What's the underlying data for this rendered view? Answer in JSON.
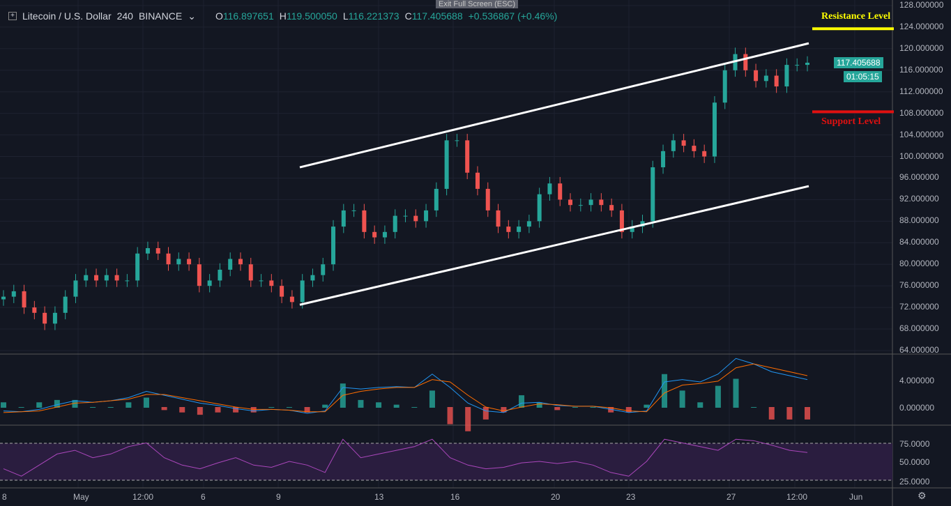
{
  "header": {
    "symbol": "Litecoin / U.S. Dollar",
    "interval": "240",
    "exchange": "BINANCE",
    "o_label": "O",
    "open": "116.897651",
    "h_label": "H",
    "high": "119.500050",
    "l_label": "L",
    "low": "116.221373",
    "c_label": "C",
    "close": "117.405688",
    "change": "+0.536867 (+0.46%)"
  },
  "exit_fullscreen": "Exit Full Screen (ESC)",
  "annotations": {
    "resistance": "Resistance Level",
    "support": "Support Level",
    "resistance_price": 123.7,
    "support_price": 108.3,
    "resistance_color": "#ffff00",
    "support_color": "#e01010"
  },
  "price_axis": [
    "128.000000",
    "124.000000",
    "120.000000",
    "116.000000",
    "112.000000",
    "108.000000",
    "104.000000",
    "100.000000",
    "96.000000",
    "92.000000",
    "88.000000",
    "84.000000",
    "80.000000",
    "76.000000",
    "72.000000",
    "68.000000",
    "64.000000"
  ],
  "last_price": "117.405688",
  "countdown": "01:05:15",
  "macd_axis": [
    "4.000000",
    "0.000000"
  ],
  "rsi_axis": [
    "75.0000",
    "50.0000",
    "25.0000"
  ],
  "time_axis": [
    "8",
    "May",
    "12:00",
    "6",
    "9",
    "13",
    "16",
    "20",
    "23",
    "27",
    "12:00",
    "Jun"
  ],
  "colors": {
    "up": "#26a69a",
    "down": "#ef5350",
    "macd": "#2196f3",
    "signal": "#ff6d00",
    "rsi": "#ab47bc"
  },
  "chart_data": {
    "type": "candlestick",
    "ylim": [
      64,
      128
    ],
    "closes": [
      74,
      75,
      72,
      71,
      69,
      71,
      74,
      77,
      78,
      77,
      78,
      77,
      77,
      82,
      83,
      82,
      80,
      81,
      80,
      76,
      77,
      79,
      81,
      80,
      77,
      77,
      76,
      74,
      73,
      77,
      78,
      80,
      87,
      90,
      90,
      86,
      85,
      86,
      89,
      89,
      88,
      90,
      94,
      103,
      103,
      97,
      94,
      90,
      87,
      86,
      87,
      88,
      93,
      95,
      92,
      91,
      91,
      92,
      91,
      90,
      86,
      87,
      88,
      98,
      101,
      103,
      102,
      101,
      100,
      110,
      116,
      119,
      116,
      114,
      115,
      113,
      117,
      117,
      117.4
    ],
    "channel_upper": [
      98,
      121
    ],
    "channel_lower": [
      72.5,
      94.5
    ],
    "macd": [
      -0.5,
      -0.6,
      -0.3,
      0.3,
      0.8,
      0.6,
      0.8,
      1.2,
      2,
      1.5,
      1,
      0.5,
      0.2,
      -0.2,
      -0.5,
      -0.3,
      -0.4,
      -0.8,
      -0.5,
      2.5,
      2.3,
      2.5,
      2.6,
      2.5,
      4.2,
      2.5,
      0.5,
      -0.5,
      -0.7,
      0.5,
      0.6,
      0.2,
      0.1,
      0.1,
      -0.3,
      -0.7,
      -0.5,
      3.2,
      3.5,
      3.2,
      4.2,
      6.2,
      5.5,
      4.5,
      4,
      3.5
    ],
    "signal": [
      -0.7,
      -0.6,
      -0.5,
      0,
      0.5,
      0.6,
      0.8,
      1,
      1.6,
      1.6,
      1.2,
      0.8,
      0.4,
      0,
      -0.3,
      -0.3,
      -0.4,
      -0.6,
      -0.6,
      1.5,
      2,
      2.3,
      2.5,
      2.5,
      3.5,
      3.2,
      1.5,
      0,
      -0.5,
      0,
      0.4,
      0.3,
      0.1,
      0.1,
      -0.1,
      -0.5,
      -0.6,
      1.8,
      2.8,
      3,
      3.3,
      5,
      5.5,
      5,
      4.5,
      4
    ],
    "rsi": [
      40,
      30,
      45,
      60,
      65,
      55,
      60,
      70,
      75,
      55,
      45,
      40,
      48,
      55,
      45,
      42,
      50,
      45,
      35,
      80,
      55,
      60,
      65,
      70,
      80,
      55,
      45,
      40,
      42,
      48,
      50,
      47,
      50,
      45,
      35,
      30,
      50,
      80,
      75,
      70,
      65,
      80,
      78,
      72,
      65,
      62
    ]
  }
}
